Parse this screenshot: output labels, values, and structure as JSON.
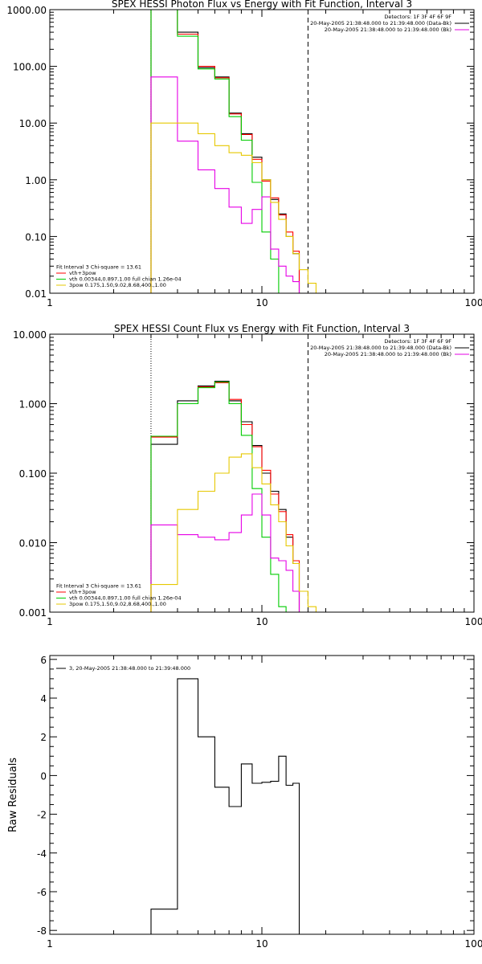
{
  "chart_data": [
    {
      "type": "line",
      "step": true,
      "title": "SPEX HESSI Photon Flux vs Energy with Fit Function, Interval 3",
      "xlabel": "",
      "ylabel": "",
      "xscale": "log",
      "yscale": "log",
      "xlim": [
        1,
        100
      ],
      "ylim": [
        0.01,
        1000
      ],
      "x_ticks": [
        1,
        10,
        100
      ],
      "x_tick_labels": [
        "1",
        "10",
        "100"
      ],
      "y_ticks": [
        0.01,
        0.1,
        1,
        10,
        100,
        1000
      ],
      "y_tick_labels": [
        "0.01",
        "0.10",
        "1.00",
        "10.00",
        "100.00",
        "1000.00"
      ],
      "vlines": [
        {
          "x": 3.0,
          "style": "dotted",
          "color": "#000000"
        },
        {
          "x": 16.5,
          "style": "dashed",
          "color": "#000000"
        }
      ],
      "bin_edges": [
        3.0,
        4.0,
        5.0,
        6.0,
        7.0,
        8.0,
        9.0,
        10.0,
        11.0,
        12.0,
        13.0,
        14.0,
        15.0,
        16.5,
        18.0,
        20.0
      ],
      "series": [
        {
          "color": "#000000",
          "values": [
            1000,
            400,
            95,
            65,
            15,
            6.5,
            2.5,
            1.0,
            0.45,
            0.25,
            0.1,
            0.05,
            null,
            null,
            null
          ]
        },
        {
          "color": "#ff0000",
          "values": [
            1000,
            370,
            100,
            63,
            14.5,
            6.3,
            2.3,
            0.95,
            0.48,
            0.24,
            0.12,
            0.055,
            null,
            null,
            null
          ]
        },
        {
          "color": "#00cc00",
          "values": [
            1000,
            340,
            90,
            60,
            13,
            5.0,
            0.9,
            0.12,
            0.04,
            0.01,
            null,
            null,
            null,
            null,
            null
          ]
        },
        {
          "color": "#e600e6",
          "values": [
            65,
            4.8,
            1.5,
            0.7,
            0.33,
            0.17,
            0.3,
            0.5,
            0.06,
            0.03,
            0.02,
            0.016,
            0.008,
            null,
            null
          ]
        },
        {
          "color": "#e6c800",
          "values": [
            10,
            10,
            6.5,
            4.0,
            3.0,
            2.7,
            2.0,
            1.0,
            0.4,
            0.2,
            0.1,
            0.05,
            0.026,
            0.015,
            0.009
          ]
        }
      ],
      "legend_right": {
        "placement": "top-right",
        "entries": [
          {
            "text": "Detectors: 1F 3F 4F 6F 9F",
            "color": ""
          },
          {
            "text": "20-May-2005 21:38:48.000 to 21:39:48.000 (Data-Bk)",
            "color": "#000000"
          },
          {
            "text": "20-May-2005 21:38:48.000 to 21:39:48.000 (Bk)",
            "color": "#e600e6"
          }
        ]
      },
      "legend_left": {
        "placement": "bottom-left",
        "entries": [
          {
            "text": "Fit Interval 3   Chi-square = 13.61",
            "color": ""
          },
          {
            "text": "vth+3pow",
            "color": "#ff0000"
          },
          {
            "text": "vth 0.00344,0.897,1.00  full chian 1.26e-04",
            "color": "#00cc00"
          },
          {
            "text": "3pow 0.175,1.50,9.02,8.68,400.,1.00",
            "color": "#e6c800"
          }
        ]
      }
    },
    {
      "type": "line",
      "step": true,
      "title": "SPEX HESSI Count Flux vs Energy with Fit Function, Interval 3",
      "xlabel": "",
      "ylabel": "",
      "xscale": "log",
      "yscale": "log",
      "xlim": [
        1,
        100
      ],
      "ylim": [
        0.001,
        10
      ],
      "x_ticks": [
        1,
        10,
        100
      ],
      "x_tick_labels": [
        "1",
        "10",
        "100"
      ],
      "y_ticks": [
        0.001,
        0.01,
        0.1,
        1,
        10
      ],
      "y_tick_labels": [
        "0.001",
        "0.010",
        "0.100",
        "1.000",
        "10.000"
      ],
      "vlines": [
        {
          "x": 3.0,
          "style": "dotted",
          "color": "#000000"
        },
        {
          "x": 16.5,
          "style": "dashed",
          "color": "#000000"
        }
      ],
      "bin_edges": [
        3.0,
        4.0,
        5.0,
        6.0,
        7.0,
        8.0,
        9.0,
        10.0,
        11.0,
        12.0,
        13.0,
        14.0,
        15.0,
        16.5,
        18.0,
        20.0
      ],
      "series": [
        {
          "color": "#000000",
          "values": [
            0.26,
            1.1,
            1.8,
            2.1,
            1.1,
            0.55,
            0.25,
            0.1,
            0.055,
            0.03,
            0.012,
            0.005,
            null,
            null,
            null
          ]
        },
        {
          "color": "#ff0000",
          "values": [
            0.33,
            1.0,
            1.75,
            2.0,
            1.15,
            0.5,
            0.24,
            0.11,
            0.05,
            0.028,
            0.013,
            0.0055,
            null,
            null,
            null
          ]
        },
        {
          "color": "#00cc00",
          "values": [
            0.34,
            1.0,
            1.7,
            2.05,
            1.0,
            0.35,
            0.06,
            0.012,
            0.0035,
            0.0012,
            null,
            null,
            null,
            null,
            null
          ]
        },
        {
          "color": "#e600e6",
          "values": [
            0.018,
            0.013,
            0.012,
            0.011,
            0.014,
            0.025,
            0.05,
            0.025,
            0.006,
            0.0055,
            0.004,
            0.002,
            null,
            null,
            null
          ]
        },
        {
          "color": "#e6c800",
          "values": [
            0.0025,
            0.03,
            0.055,
            0.1,
            0.17,
            0.19,
            0.12,
            0.07,
            0.035,
            0.02,
            0.009,
            0.005,
            0.002,
            0.0012,
            null
          ]
        }
      ],
      "legend_right": {
        "placement": "top-right",
        "entries": [
          {
            "text": "Detectors: 1F 3F 4F 6F 9F",
            "color": ""
          },
          {
            "text": "20-May-2005 21:38:48.000 to 21:39:48.000 (Data-Bk)",
            "color": "#000000"
          },
          {
            "text": "20-May-2005 21:38:48.000 to 21:39:48.000 (Bk)",
            "color": "#e600e6"
          }
        ]
      },
      "legend_left": {
        "placement": "bottom-left",
        "entries": [
          {
            "text": "Fit Interval 3   Chi-square = 13.61",
            "color": ""
          },
          {
            "text": "vth+3pow",
            "color": "#ff0000"
          },
          {
            "text": "vth 0.00344,0.897,1.00  full chian 1.26e-04",
            "color": "#00cc00"
          },
          {
            "text": "3pow 0.175,1.50,9.02,8.68,400.,1.00",
            "color": "#e6c800"
          }
        ]
      }
    },
    {
      "type": "line",
      "step": true,
      "title": "",
      "xlabel": "",
      "ylabel": "Raw Residuals",
      "xscale": "log",
      "yscale": "linear",
      "xlim": [
        1,
        100
      ],
      "ylim": [
        -8.2,
        6.2
      ],
      "x_ticks": [
        1,
        10,
        100
      ],
      "x_tick_labels": [
        "1",
        "10",
        "100"
      ],
      "y_ticks": [
        -8,
        -6,
        -4,
        -2,
        0,
        2,
        4,
        6
      ],
      "y_tick_labels": [
        "-8",
        "-6",
        "-4",
        "-2",
        "0",
        "2",
        "4",
        "6"
      ],
      "vlines": [],
      "bin_edges": [
        3.0,
        4.0,
        5.0,
        6.0,
        7.0,
        8.0,
        9.0,
        10.0,
        11.0,
        12.0,
        13.0,
        14.0,
        15.0,
        16.5
      ],
      "series": [
        {
          "color": "#000000",
          "values": [
            -6.9,
            5.0,
            2.0,
            -0.6,
            -1.6,
            0.6,
            -0.4,
            -0.35,
            -0.3,
            1.0,
            -0.5,
            -0.4,
            -8.2
          ]
        }
      ],
      "legend_left": {
        "placement": "top-left",
        "entries": [
          {
            "text": "3, 20-May-2005 21:38:48.000 to 21:39:48.000",
            "color": "#000000"
          }
        ]
      }
    }
  ]
}
